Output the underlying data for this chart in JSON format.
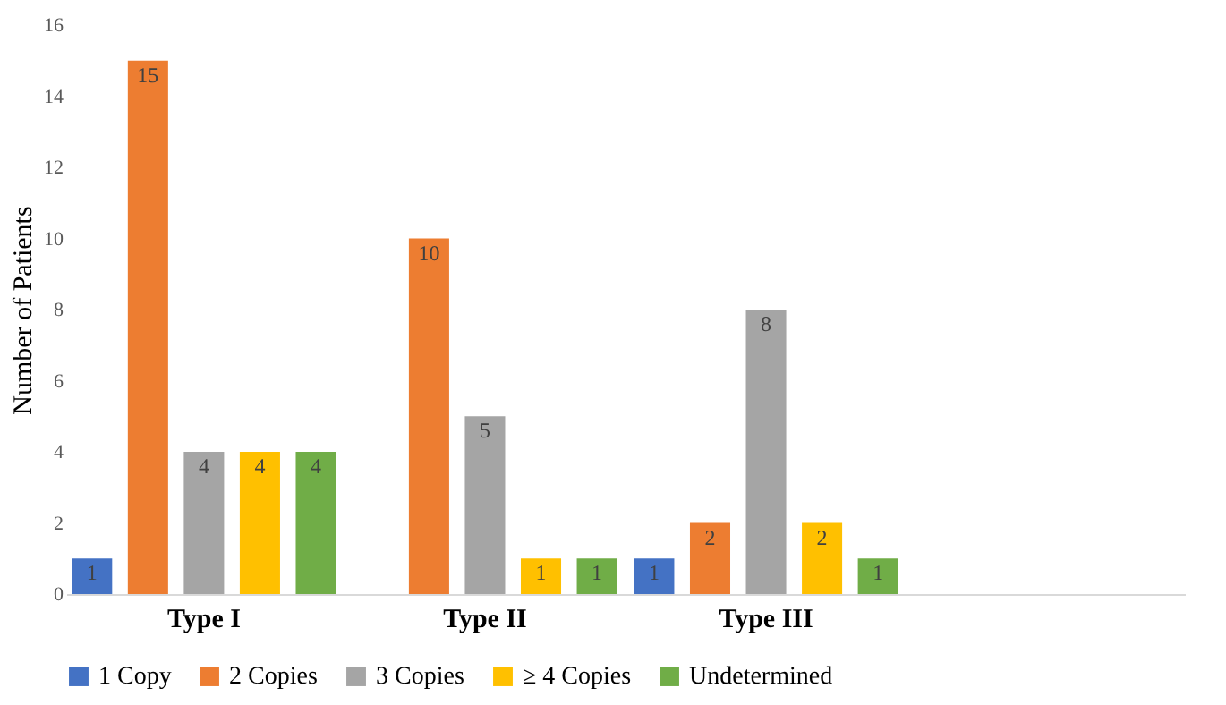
{
  "chart_data": {
    "type": "bar",
    "ylabel": "Number of Patients",
    "categories": [
      "Type I",
      "Type II",
      "Type III",
      null
    ],
    "series": [
      {
        "name": "1 Copy",
        "color": "#4472c4",
        "values": [
          1,
          null,
          1,
          null
        ]
      },
      {
        "name": "2 Copies",
        "color": "#ed7d31",
        "values": [
          15,
          10,
          2,
          null
        ]
      },
      {
        "name": "3 Copies",
        "color": "#a5a5a5",
        "values": [
          4,
          5,
          8,
          null
        ]
      },
      {
        "name": "≥ 4 Copies",
        "color": "#ffc000",
        "values": [
          4,
          1,
          2,
          null
        ]
      },
      {
        "name": "Undetermined",
        "color": "#70ad47",
        "values": [
          4,
          1,
          1,
          null
        ]
      }
    ],
    "ylim": [
      0,
      16
    ],
    "yticks": [
      0,
      2,
      4,
      6,
      8,
      10,
      12,
      14,
      16
    ],
    "grid": false,
    "legend": "bottom",
    "data_labels": true
  }
}
